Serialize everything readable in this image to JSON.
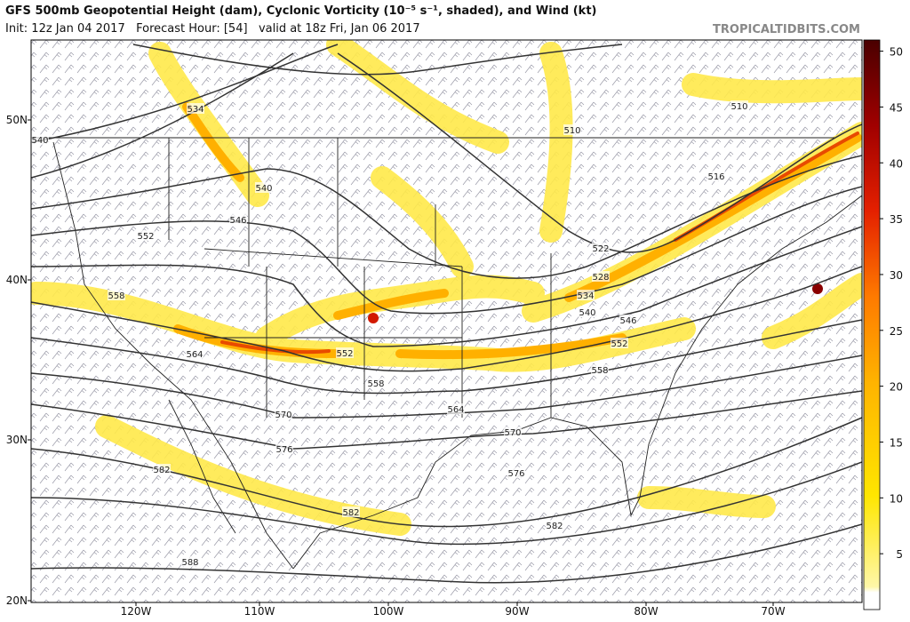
{
  "header": {
    "title": "GFS 500mb Geopotential Height (dam), Cyclonic Vorticity (10⁻⁵ s⁻¹, shaded), and Wind (kt)",
    "subtitle": "Init: 12z Jan 04 2017   Forecast Hour: [54]   valid at 18z Fri, Jan 06 2017",
    "brand": "TROPICALTIDBITS.COM"
  },
  "map": {
    "lat_labels": [
      "50N",
      "40N",
      "30N",
      "20N"
    ],
    "lon_labels": [
      "120W",
      "110W",
      "100W",
      "90W",
      "80W",
      "70W"
    ],
    "contour_labels": [
      534,
      540,
      540,
      546,
      552,
      558,
      564,
      552,
      558,
      570,
      564,
      576,
      582,
      570,
      576,
      582,
      582,
      588,
      510,
      510,
      516,
      522,
      528,
      534,
      540,
      546,
      552,
      558
    ]
  },
  "colorbar": {
    "range": [
      0,
      51
    ],
    "ticks": [
      5,
      10,
      15,
      20,
      25,
      30,
      35,
      40,
      45,
      50
    ]
  }
}
